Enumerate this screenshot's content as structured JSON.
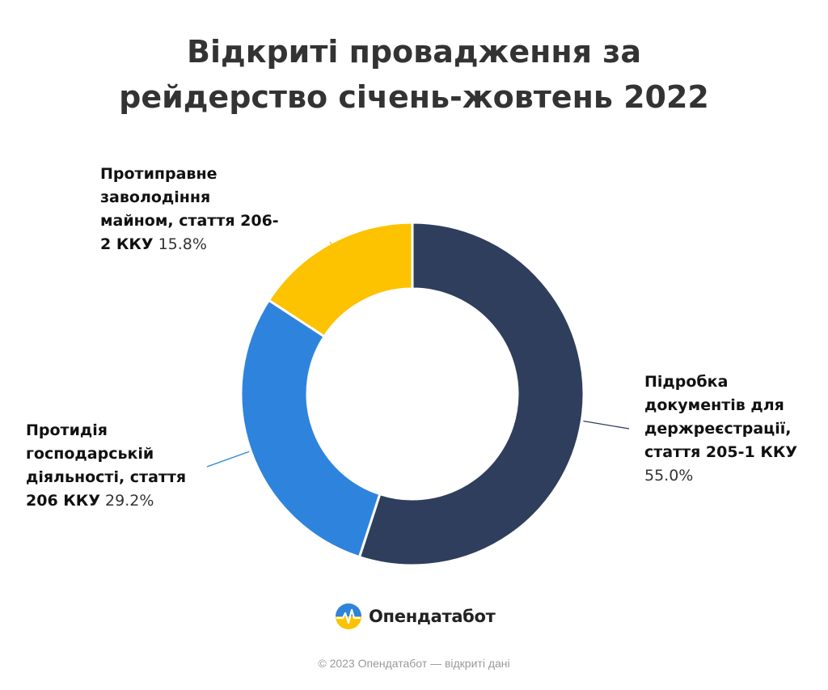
{
  "title_lines": [
    "Відкриті провадження за",
    "рейдерство січень-жовтень 2022"
  ],
  "chart_data": {
    "type": "pie",
    "donut": true,
    "title": "Відкриті провадження за рейдерство січень-жовтень 2022",
    "categories": [
      "Підробка документів для держреєстрації, стаття 205-1 ККУ",
      "Протидія господарській діяльності, стаття 206 ККУ",
      "Протиправне заволодіння майном, стаття 206-2 ККУ"
    ],
    "values": [
      55.0,
      29.2,
      15.8
    ],
    "value_labels": [
      "55.0%",
      "29.2%",
      "15.8%"
    ],
    "colors": [
      "#2f3e5c",
      "#2e84dc",
      "#fdc200"
    ],
    "legend": "none"
  },
  "labels": {
    "s1": {
      "lines": [
        "Підробка",
        "документів для",
        "держреєстрації,",
        "стаття 205-1 ККУ"
      ],
      "pct": "55.0%"
    },
    "s2": {
      "lines": [
        "Протидія",
        "господарській",
        "діяльності, стаття"
      ],
      "last": "206 ККУ",
      "pct": "29.2%"
    },
    "s3": {
      "lines": [
        "Протиправне",
        "заволодіння",
        "майном, стаття 206-"
      ],
      "last": "2 ККУ",
      "pct": "15.8%"
    }
  },
  "logo": {
    "text": "Опендатабот",
    "icon": "opendatabot-logo-icon"
  },
  "footer": "© 2023 Опендатабот — відкриті дані"
}
